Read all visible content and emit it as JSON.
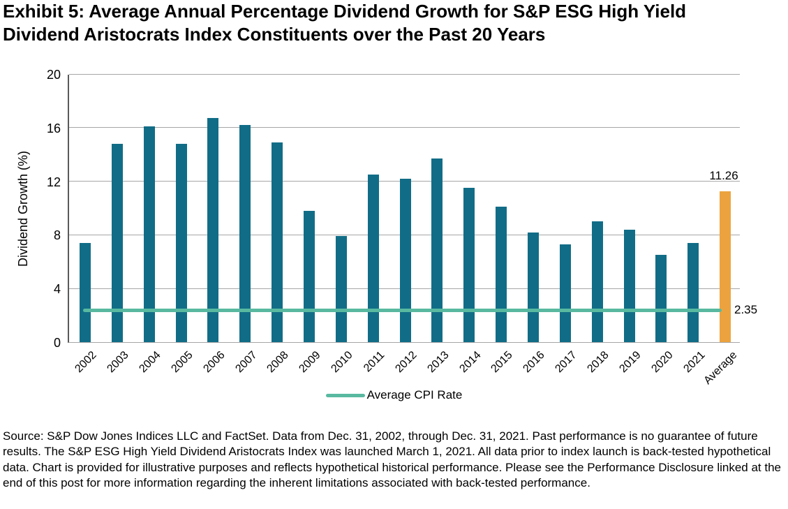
{
  "title": "Exhibit 5: Average Annual Percentage Dividend Growth for S&P ESG High Yield\nDividend Aristocrats Index Constituents over the Past 20 Years",
  "chart_data": {
    "type": "bar",
    "title": "Exhibit 5: Average Annual Percentage Dividend Growth for S&P ESG High Yield Dividend Aristocrats Index Constituents over the Past 20 Years",
    "xlabel": "",
    "ylabel": "Dividend Growth (%)",
    "ylim": [
      0,
      20
    ],
    "yticks": [
      0,
      4,
      8,
      12,
      16,
      20
    ],
    "grid": true,
    "categories": [
      "2002",
      "2003",
      "2004",
      "2005",
      "2006",
      "2007",
      "2008",
      "2009",
      "2010",
      "2011",
      "2012",
      "2013",
      "2014",
      "2015",
      "2016",
      "2017",
      "2018",
      "2019",
      "2020",
      "2021",
      "Average"
    ],
    "values": [
      7.4,
      14.8,
      16.1,
      14.8,
      16.7,
      16.2,
      14.9,
      9.8,
      7.9,
      12.5,
      12.2,
      13.7,
      11.5,
      10.1,
      8.2,
      7.3,
      9.0,
      8.4,
      6.5,
      7.4,
      11.26
    ],
    "bar_color": "#116D87",
    "highlight_category": "Average",
    "highlight_color": "#ECA33F",
    "highlight_label": "11.26",
    "reference_line": {
      "label": "Average CPI Rate",
      "value": 2.35,
      "display_value": "2.35",
      "color": "#58B9A0"
    },
    "legend": {
      "position": "bottom-center",
      "entries": [
        "Average CPI Rate"
      ]
    },
    "gridline_color": "#a6a6a6",
    "axis_line_color": "#595959"
  },
  "source_text": "Source: S&P Dow Jones Indices LLC and FactSet. Data from Dec. 31, 2002, through Dec. 31, 2021. Past performance is no guarantee of future results. The S&P ESG High Yield Dividend Aristocrats Index was launched March 1, 2021. All data prior to index launch is back-tested hypothetical data. Chart is provided for illustrative purposes and reflects hypothetical historical performance. Please see the Performance Disclosure linked at the end of this post for more information regarding the inherent limitations associated with back-tested performance."
}
